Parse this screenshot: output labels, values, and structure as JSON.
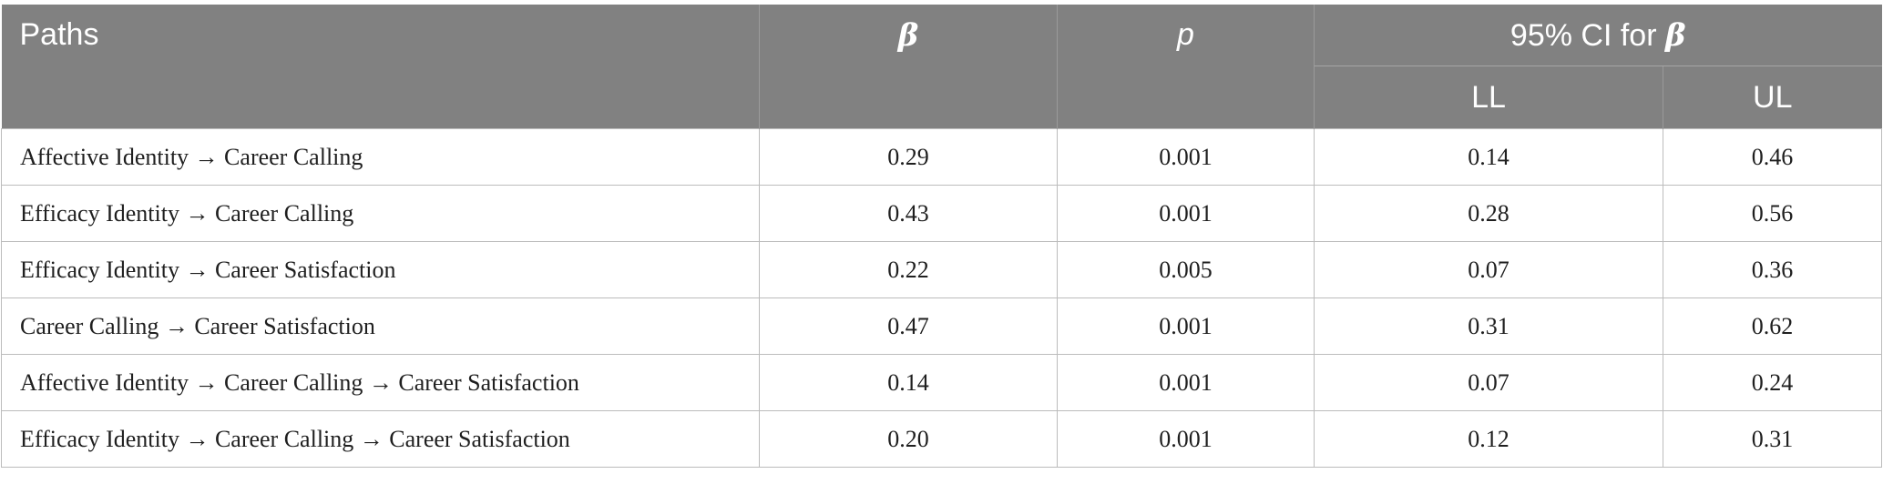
{
  "table": {
    "headers": {
      "paths": "Paths",
      "beta": "β",
      "p": "p",
      "ci_prefix": "95% CI for ",
      "ci_symbol": "β",
      "ll": "LL",
      "ul": "UL"
    },
    "rows": [
      {
        "path": "Affective Identity → Career Calling",
        "beta": "0.29",
        "p": "0.001",
        "ll": "0.14",
        "ul": "0.46"
      },
      {
        "path": "Efficacy Identity → Career Calling",
        "beta": "0.43",
        "p": "0.001",
        "ll": "0.28",
        "ul": "0.56"
      },
      {
        "path": "Efficacy Identity → Career Satisfaction",
        "beta": "0.22",
        "p": "0.005",
        "ll": "0.07",
        "ul": "0.36"
      },
      {
        "path": "Career Calling → Career Satisfaction",
        "beta": "0.47",
        "p": "0.001",
        "ll": "0.31",
        "ul": "0.62"
      },
      {
        "path": "Affective Identity → Career Calling → Career Satisfaction",
        "beta": "0.14",
        "p": "0.001",
        "ll": "0.07",
        "ul": "0.24"
      },
      {
        "path": "Efficacy Identity → Career Calling → Career Satisfaction",
        "beta": "0.20",
        "p": "0.001",
        "ll": "0.12",
        "ul": "0.31"
      }
    ]
  },
  "colors": {
    "header_bg": "#818181",
    "header_text": "#ffffff",
    "border": "#bcbcbc"
  }
}
